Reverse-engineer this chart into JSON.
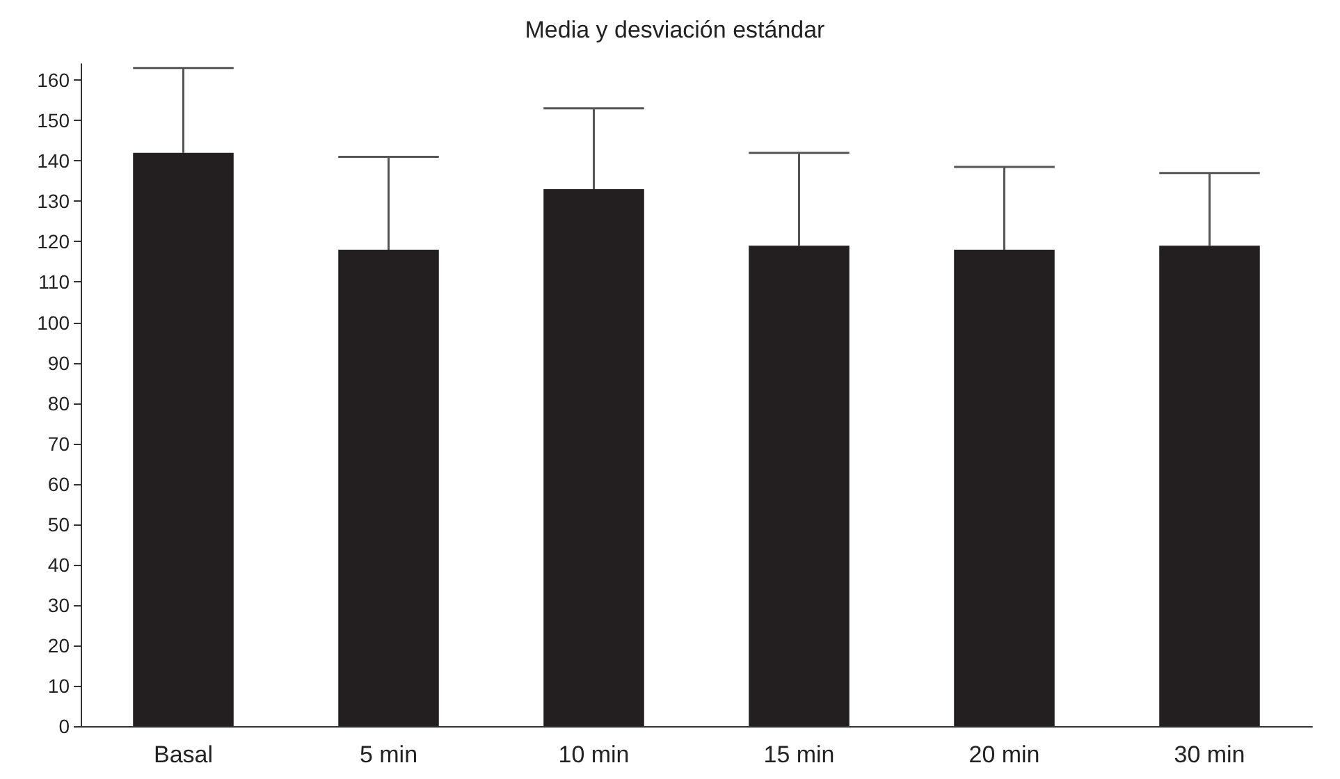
{
  "chart_data": {
    "type": "bar",
    "title": "Media y desviación estándar",
    "categories": [
      "Basal",
      "5 min",
      "10 min",
      "15 min",
      "20 min",
      "30 min"
    ],
    "values": [
      142,
      118,
      133,
      119,
      118,
      119
    ],
    "errors": [
      [
        142,
        163
      ],
      [
        118,
        141
      ],
      [
        133,
        153
      ],
      [
        119,
        142
      ],
      [
        118,
        138.5
      ],
      [
        119,
        137
      ]
    ],
    "color": "#231f20",
    "ylim": [
      0,
      164
    ],
    "yticks": [
      0,
      10,
      20,
      30,
      40,
      50,
      60,
      70,
      80,
      90,
      100,
      110,
      120,
      130,
      140,
      150,
      160
    ],
    "grid": false
  }
}
